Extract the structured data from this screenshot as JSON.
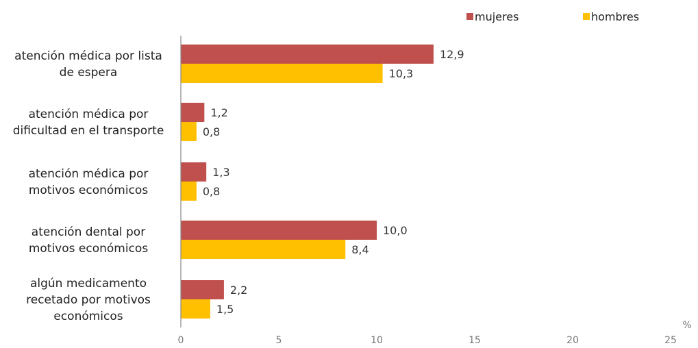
{
  "chart_data": {
    "type": "bar",
    "orientation": "horizontal",
    "categories": [
      [
        "atención médica por lista",
        "de espera"
      ],
      [
        "atención médica por",
        "dificultad en el transporte"
      ],
      [
        "atención médica por",
        "motivos económicos"
      ],
      [
        "atención dental por",
        "motivos económicos"
      ],
      [
        "algún medicamento",
        "recetado por motivos",
        "económicos"
      ]
    ],
    "series": [
      {
        "name": "mujeres",
        "color": "#c0504d",
        "values": [
          12.9,
          1.2,
          1.3,
          10.0,
          2.2
        ],
        "labels": [
          "12,9",
          "1,2",
          "1,3",
          "10,0",
          "2,2"
        ]
      },
      {
        "name": "hombres",
        "color": "#ffc000",
        "values": [
          10.3,
          0.8,
          0.8,
          8.4,
          1.5
        ],
        "labels": [
          "10,3",
          "0,8",
          "0,8",
          "8,4",
          "1,5"
        ]
      }
    ],
    "xlim": [
      0,
      25
    ],
    "xticks": [
      0,
      5,
      10,
      15,
      20,
      25
    ],
    "xunit": "%",
    "grid": false,
    "legend_position": "top-right"
  }
}
